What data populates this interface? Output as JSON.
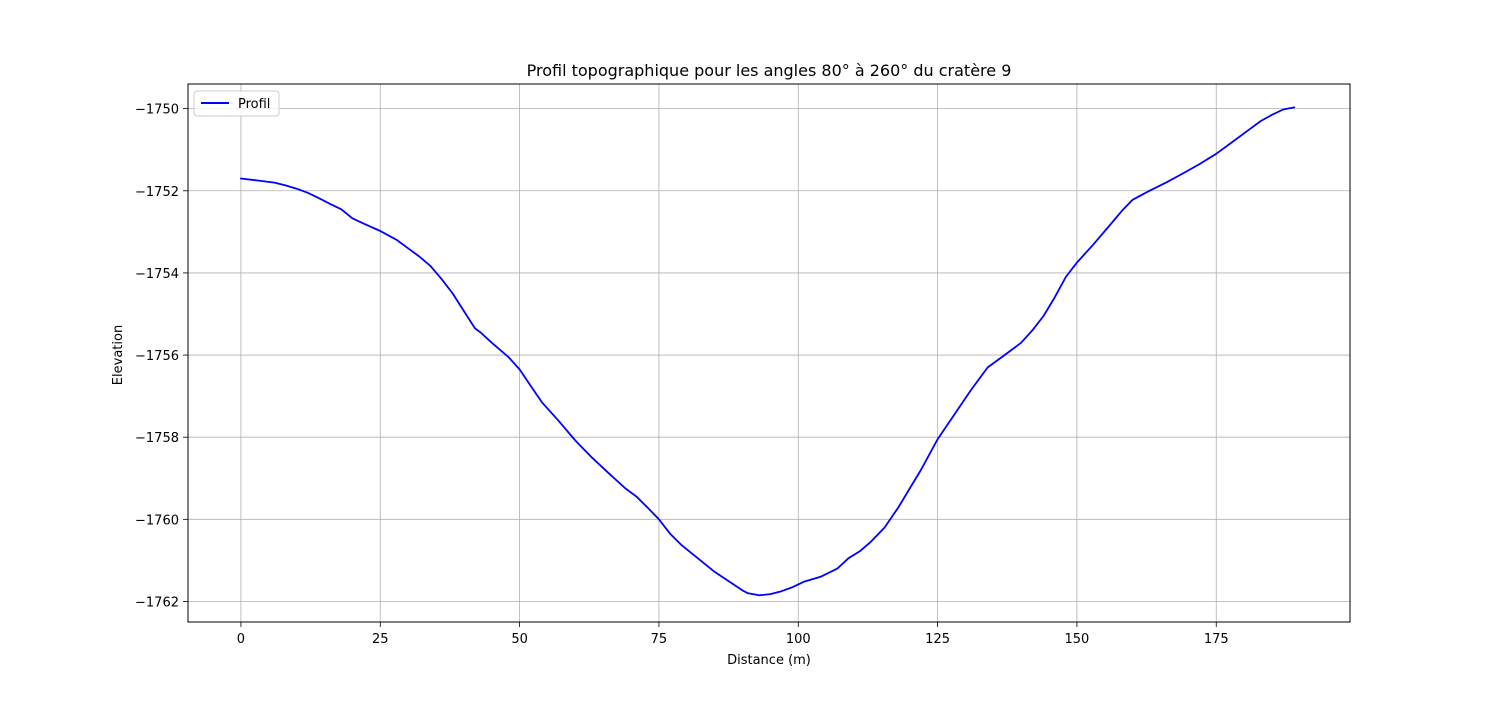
{
  "chart_data": {
    "type": "line",
    "title": "Profil topographique pour les angles 80° à 260° du cratère 9",
    "xlabel": "Distance (m)",
    "ylabel": "Elevation",
    "xlim": [
      -9.5,
      199
    ],
    "ylim": [
      -1762.5,
      -1749.4
    ],
    "xticks": [
      0,
      25,
      50,
      75,
      100,
      125,
      150,
      175
    ],
    "xtick_labels": [
      "0",
      "25",
      "50",
      "75",
      "100",
      "125",
      "150",
      "175"
    ],
    "yticks": [
      -1762,
      -1760,
      -1758,
      -1756,
      -1754,
      -1752,
      -1750
    ],
    "ytick_labels": [
      "−1762",
      "−1760",
      "−1758",
      "−1756",
      "−1754",
      "−1752",
      "−1750"
    ],
    "grid": true,
    "legend": {
      "position": "top-left",
      "entries": [
        "Profil"
      ]
    },
    "series": [
      {
        "name": "Profil",
        "color": "#0000ff",
        "x": [
          0,
          3,
          6,
          8,
          10,
          12,
          14,
          16,
          18,
          20,
          22,
          25,
          28,
          30,
          32,
          34,
          36,
          38,
          40,
          42,
          43,
          45,
          48,
          50,
          52,
          54,
          57,
          60,
          63,
          66,
          69,
          71,
          73,
          75,
          77,
          79,
          82,
          85,
          88,
          90,
          91,
          93,
          95,
          97,
          99,
          101,
          104,
          107,
          109,
          111,
          113,
          115.5,
          118,
          120,
          122,
          125,
          128,
          131,
          134,
          137,
          140,
          142,
          144,
          146,
          148,
          150,
          153,
          156,
          158,
          160,
          163,
          166,
          169,
          172,
          175,
          178,
          181,
          183,
          185,
          187,
          189
        ],
        "y": [
          -1751.7,
          -1751.75,
          -1751.8,
          -1751.87,
          -1751.95,
          -1752.05,
          -1752.18,
          -1752.32,
          -1752.45,
          -1752.67,
          -1752.8,
          -1752.98,
          -1753.2,
          -1753.4,
          -1753.6,
          -1753.83,
          -1754.15,
          -1754.5,
          -1754.93,
          -1755.35,
          -1755.45,
          -1755.7,
          -1756.05,
          -1756.35,
          -1756.75,
          -1757.15,
          -1757.6,
          -1758.08,
          -1758.5,
          -1758.88,
          -1759.25,
          -1759.45,
          -1759.72,
          -1760.0,
          -1760.35,
          -1760.62,
          -1760.95,
          -1761.28,
          -1761.55,
          -1761.73,
          -1761.8,
          -1761.85,
          -1761.82,
          -1761.75,
          -1761.65,
          -1761.52,
          -1761.4,
          -1761.2,
          -1760.95,
          -1760.78,
          -1760.55,
          -1760.2,
          -1759.7,
          -1759.25,
          -1758.8,
          -1758.05,
          -1757.45,
          -1756.85,
          -1756.3,
          -1756.0,
          -1755.7,
          -1755.4,
          -1755.05,
          -1754.6,
          -1754.1,
          -1753.75,
          -1753.3,
          -1752.82,
          -1752.5,
          -1752.22,
          -1752.0,
          -1751.8,
          -1751.58,
          -1751.35,
          -1751.1,
          -1750.8,
          -1750.5,
          -1750.3,
          -1750.15,
          -1750.02,
          -1749.97
        ]
      }
    ]
  }
}
